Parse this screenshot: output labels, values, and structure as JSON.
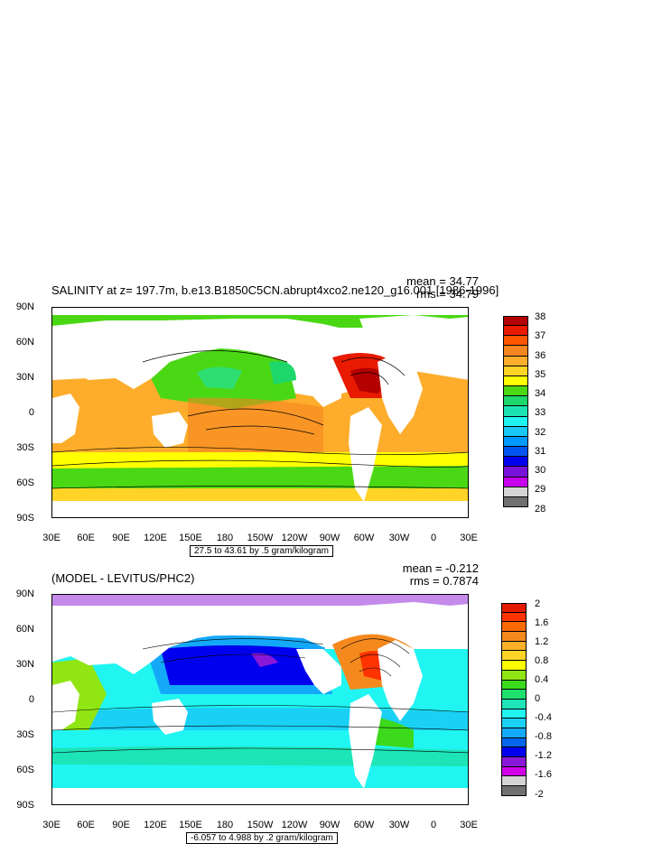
{
  "top_panel": {
    "title": "SALINITY at z= 197.7m, b.e13.B1850C5CN.abrupt4xco2.ne120_g16.001 [1986-1996]",
    "mean": "mean = 34.77",
    "rms": "rms = 34.79",
    "lat_labels": [
      "90N",
      "60N",
      "30N",
      "0",
      "30S",
      "60S",
      "90S"
    ],
    "lon_labels": [
      "30E",
      "60E",
      "90E",
      "120E",
      "150E",
      "180",
      "150W",
      "120W",
      "90W",
      "60W",
      "30W",
      "0",
      "30E"
    ],
    "range_box": "27.5 to 43.61 by .5 gram/kilogram",
    "colorbar_labels": [
      "38",
      "37",
      "36",
      "35",
      "34",
      "33",
      "32",
      "31",
      "30",
      "29",
      "28"
    ],
    "colorbar_colors": [
      "#b40000",
      "#e81a00",
      "#ff5500",
      "#f5861f",
      "#fdad2b",
      "#ffd427",
      "#ffff00",
      "#4bd814",
      "#1ed76b",
      "#1de3b3",
      "#20f4f1",
      "#19c8f5",
      "#0099ff",
      "#0055f0",
      "#0000ee",
      "#7811d9",
      "#c700ee",
      "#d4d4d4",
      "#707070"
    ]
  },
  "bottom_panel": {
    "title": "(MODEL - LEVITUS/PHC2)",
    "mean": "mean = -0.212",
    "rms": "rms = 0.7874",
    "lat_labels": [
      "90N",
      "60N",
      "30N",
      "0",
      "30S",
      "60S",
      "90S"
    ],
    "lon_labels": [
      "30E",
      "60E",
      "90E",
      "120E",
      "150E",
      "180",
      "150W",
      "120W",
      "90W",
      "60W",
      "30W",
      "0",
      "30E"
    ],
    "range_box": "-6.057 to 4.988 by .2 gram/kilogram",
    "colorbar_labels": [
      "2",
      "1.6",
      "1.2",
      "0.8",
      "0.4",
      "0",
      "-0.4",
      "-0.8",
      "-1.2",
      "-1.6",
      "-2"
    ],
    "colorbar_colors": [
      "#e41a00",
      "#ff3300",
      "#ff6a00",
      "#f5891e",
      "#fdb12a",
      "#ffd427",
      "#ffff00",
      "#90e512",
      "#3cd91c",
      "#1fe06d",
      "#1de5b8",
      "#20f5f2",
      "#1ad0f4",
      "#14a9f8",
      "#0066ee",
      "#0000ee",
      "#8a18d8",
      "#d000ea",
      "#d4d4d4",
      "#707070"
    ]
  }
}
